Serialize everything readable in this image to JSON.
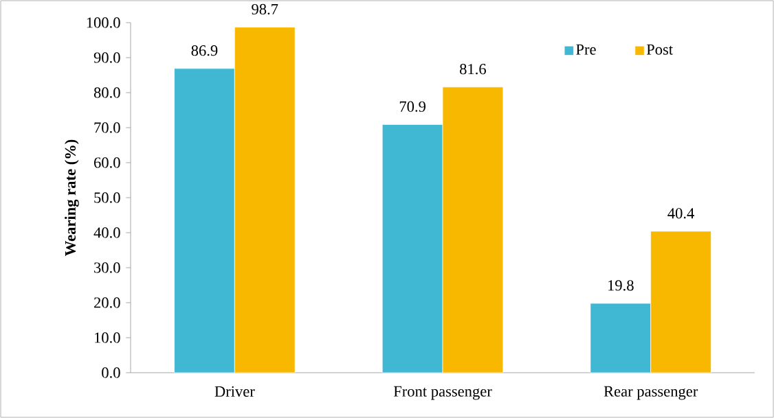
{
  "chart_data": {
    "type": "bar",
    "ylabel": "Wearing rate (%)",
    "categories": [
      "Driver",
      "Front passenger",
      "Rear passenger"
    ],
    "series": [
      {
        "name": "Pre",
        "color": "#41b8d3",
        "values": [
          86.9,
          70.9,
          19.8
        ]
      },
      {
        "name": "Post",
        "color": "#f9b800",
        "values": [
          98.7,
          81.6,
          40.4
        ]
      }
    ],
    "ylim": [
      0,
      100
    ],
    "yticks": [
      {
        "value": 0,
        "label": "0.0"
      },
      {
        "value": 10,
        "label": "10.0"
      },
      {
        "value": 20,
        "label": "20.0"
      },
      {
        "value": 30,
        "label": "30.0"
      },
      {
        "value": 40,
        "label": "40.0"
      },
      {
        "value": 50,
        "label": "50.0"
      },
      {
        "value": 60,
        "label": "60.0"
      },
      {
        "value": 70,
        "label": "70.0"
      },
      {
        "value": 80,
        "label": "80.0"
      },
      {
        "value": 90,
        "label": "90.0"
      },
      {
        "value": 100,
        "label": "100.0"
      }
    ],
    "data_labels": true,
    "legend": "top right",
    "grid": false
  }
}
